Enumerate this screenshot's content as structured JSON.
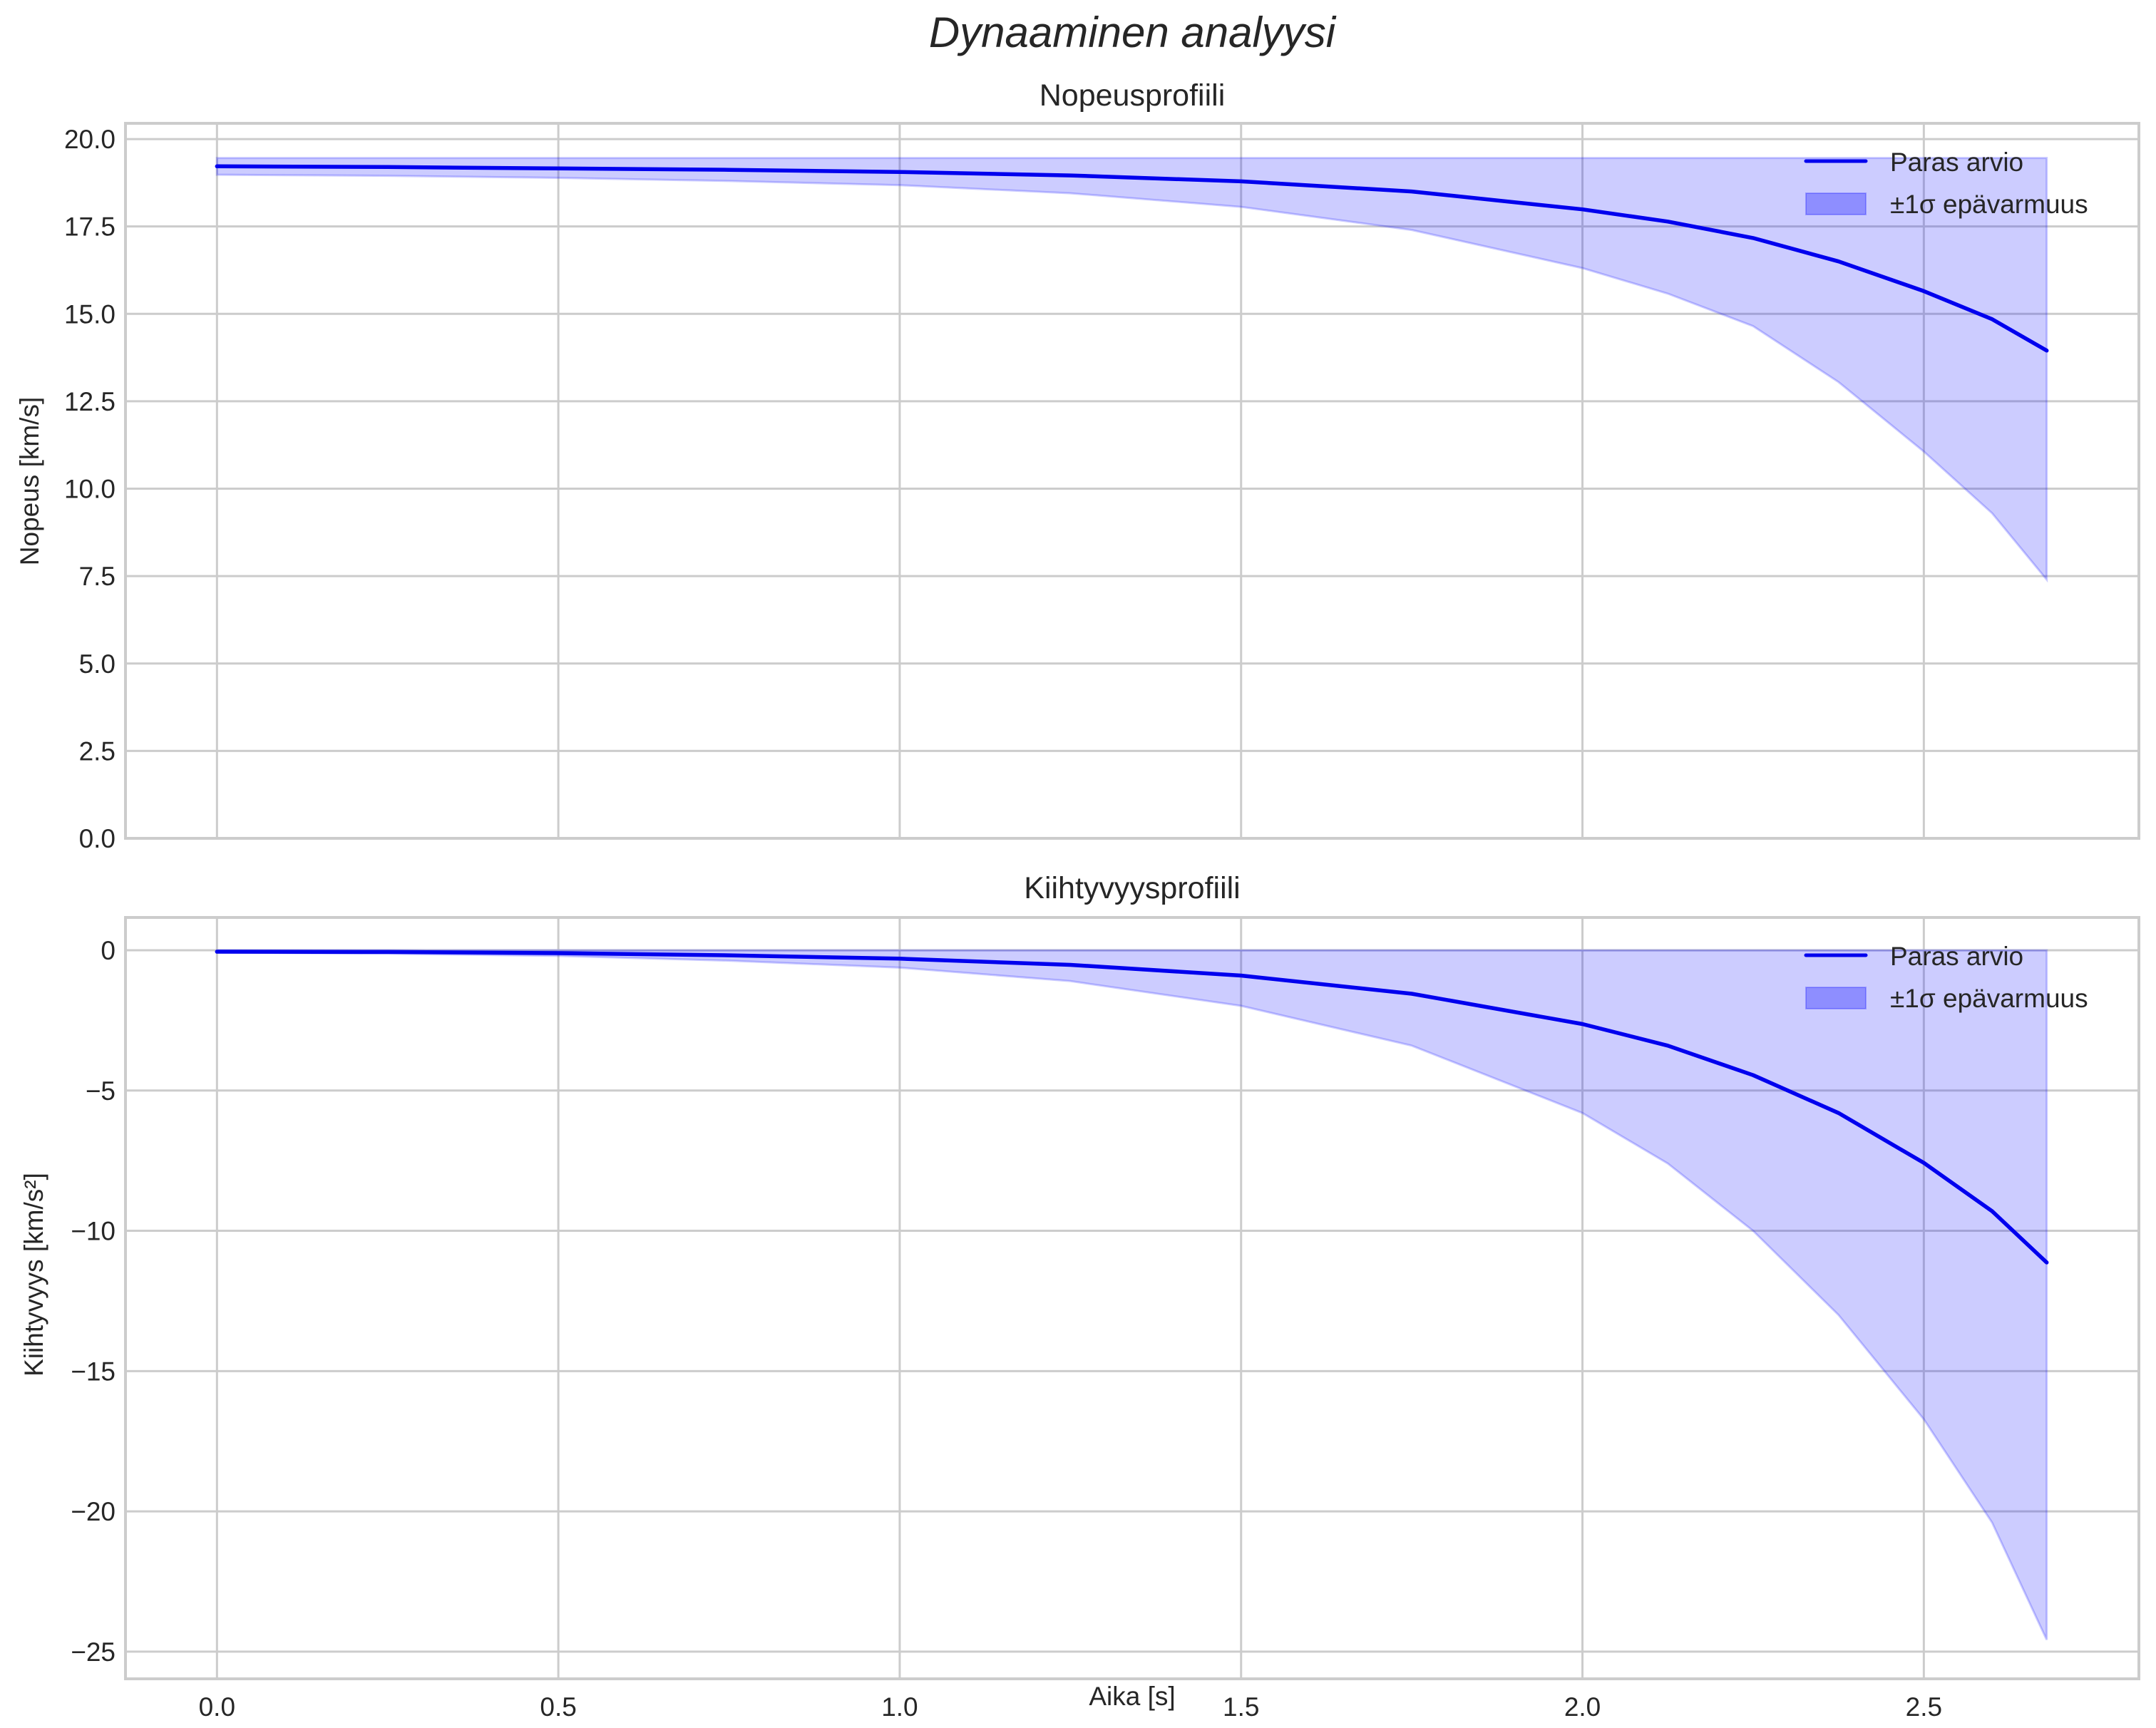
{
  "figure": {
    "suptitle": "Dynaaminen analyysi",
    "xlabel": "Aika [s]"
  },
  "colors": {
    "line": "#0000ee",
    "band_fill": "#0000ff",
    "band_alpha": 0.2,
    "grid": "#cccccc",
    "spine": "#cccccc",
    "text": "#262626"
  },
  "legend": {
    "line_label": "Paras arvio",
    "band_label": "±1σ epävarmuus"
  },
  "chart_data": [
    {
      "type": "line",
      "title": "Nopeusprofiili",
      "xlabel": "",
      "ylabel": "Nopeus [km/s]",
      "xlim": [
        -0.134,
        2.815
      ],
      "ylim": [
        0,
        20.45
      ],
      "xticks": [
        0.0,
        0.5,
        1.0,
        1.5,
        2.0,
        2.5
      ],
      "xtick_labels": [],
      "yticks": [
        0,
        2.5,
        5,
        7.5,
        10,
        12.5,
        15,
        17.5,
        20
      ],
      "ytick_labels": [
        "0.0",
        "2.5",
        "5.0",
        "7.5",
        "10.0",
        "12.5",
        "15.0",
        "17.5",
        "20.0"
      ],
      "grid": true,
      "legend_position": "upper right",
      "x": [
        0.0,
        0.25,
        0.5,
        0.75,
        1.0,
        1.25,
        1.5,
        1.75,
        2.0,
        2.125,
        2.25,
        2.375,
        2.5,
        2.6,
        2.68
      ],
      "series": [
        {
          "name": "Paras arvio",
          "kind": "line",
          "values": [
            19.22,
            19.2,
            19.16,
            19.12,
            19.06,
            18.96,
            18.79,
            18.5,
            17.99,
            17.64,
            17.17,
            16.5,
            15.65,
            14.85,
            13.95
          ]
        },
        {
          "name": "±1σ epävarmuus",
          "kind": "band",
          "upper": [
            19.46,
            19.46,
            19.46,
            19.46,
            19.46,
            19.46,
            19.46,
            19.46,
            19.46,
            19.46,
            19.46,
            19.46,
            19.46,
            19.46,
            19.46
          ],
          "lower": [
            18.98,
            18.95,
            18.89,
            18.8,
            18.68,
            18.45,
            18.06,
            17.4,
            16.31,
            15.58,
            14.65,
            13.05,
            11.06,
            9.3,
            7.4
          ]
        }
      ]
    },
    {
      "type": "line",
      "title": "Kiihtyvyysprofiili",
      "xlabel": "Aika [s]",
      "ylabel": "Kiihtyvyys [km/s²]",
      "xlim": [
        -0.134,
        2.815
      ],
      "ylim": [
        -25.97,
        1.17
      ],
      "xticks": [
        0.0,
        0.5,
        1.0,
        1.5,
        2.0,
        2.5
      ],
      "xtick_labels": [
        "0.0",
        "0.5",
        "1.0",
        "1.5",
        "2.0",
        "2.5"
      ],
      "yticks": [
        0,
        -5,
        -10,
        -15,
        -20,
        -25
      ],
      "ytick_labels": [
        "0",
        "−5",
        "−10",
        "−15",
        "−20",
        "−25"
      ],
      "grid": true,
      "legend_position": "upper right",
      "x": [
        0.0,
        0.25,
        0.5,
        0.75,
        1.0,
        1.25,
        1.5,
        1.75,
        2.0,
        2.125,
        2.25,
        2.375,
        2.5,
        2.6,
        2.68
      ],
      "series": [
        {
          "name": "Paras arvio",
          "kind": "line",
          "values": [
            -0.05,
            -0.06,
            -0.1,
            -0.18,
            -0.3,
            -0.52,
            -0.9,
            -1.55,
            -2.63,
            -3.4,
            -4.45,
            -5.8,
            -7.58,
            -9.3,
            -11.13
          ]
        },
        {
          "name": "±1σ epävarmuus",
          "kind": "band",
          "upper": [
            0,
            0,
            0,
            0,
            0,
            0,
            0,
            0,
            0,
            0,
            0,
            0,
            0,
            0,
            0
          ],
          "lower": [
            -0.08,
            -0.12,
            -0.2,
            -0.37,
            -0.62,
            -1.1,
            -1.98,
            -3.4,
            -5.8,
            -7.6,
            -10.0,
            -13.0,
            -16.72,
            -20.4,
            -24.58
          ]
        }
      ]
    }
  ]
}
